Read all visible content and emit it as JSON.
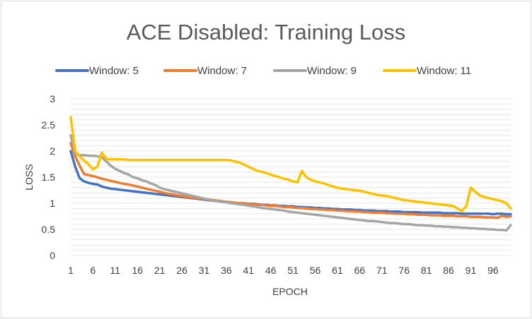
{
  "chart_data": {
    "type": "line",
    "title": "ACE Disabled: Training Loss",
    "xlabel": "EPOCH",
    "ylabel": "LOSS",
    "ylim": [
      0,
      3
    ],
    "yticks": [
      "0",
      "0.5",
      "1",
      "1.5",
      "2",
      "2.5",
      "3"
    ],
    "xticks": [
      "1",
      "6",
      "11",
      "16",
      "21",
      "26",
      "31",
      "36",
      "41",
      "46",
      "51",
      "56",
      "61",
      "66",
      "71",
      "76",
      "81",
      "86",
      "91",
      "96"
    ],
    "x_range": [
      1,
      100
    ],
    "grid": "horizontal",
    "legend_position": "top",
    "series": [
      {
        "name": "Window: 5",
        "color": "#4472C4",
        "values": [
          2.0,
          1.7,
          1.48,
          1.42,
          1.39,
          1.37,
          1.36,
          1.32,
          1.3,
          1.28,
          1.27,
          1.26,
          1.25,
          1.24,
          1.23,
          1.22,
          1.21,
          1.2,
          1.19,
          1.18,
          1.17,
          1.16,
          1.15,
          1.14,
          1.13,
          1.12,
          1.11,
          1.1,
          1.09,
          1.08,
          1.07,
          1.06,
          1.05,
          1.04,
          1.03,
          1.02,
          1.02,
          1.01,
          1.0,
          1.0,
          0.99,
          0.99,
          0.98,
          0.97,
          0.97,
          0.96,
          0.96,
          0.95,
          0.95,
          0.94,
          0.94,
          0.93,
          0.93,
          0.92,
          0.92,
          0.91,
          0.91,
          0.9,
          0.9,
          0.89,
          0.89,
          0.88,
          0.88,
          0.88,
          0.87,
          0.87,
          0.86,
          0.86,
          0.86,
          0.85,
          0.85,
          0.85,
          0.84,
          0.84,
          0.84,
          0.83,
          0.83,
          0.83,
          0.83,
          0.82,
          0.82,
          0.82,
          0.82,
          0.82,
          0.81,
          0.81,
          0.81,
          0.81,
          0.8,
          0.8,
          0.8,
          0.8,
          0.8,
          0.8,
          0.8,
          0.79,
          0.8,
          0.8,
          0.79,
          0.79
        ]
      },
      {
        "name": "Window: 7",
        "color": "#ED7D31",
        "values": [
          2.15,
          1.9,
          1.72,
          1.56,
          1.54,
          1.52,
          1.5,
          1.47,
          1.45,
          1.43,
          1.41,
          1.39,
          1.37,
          1.36,
          1.34,
          1.32,
          1.3,
          1.28,
          1.26,
          1.24,
          1.22,
          1.2,
          1.18,
          1.17,
          1.15,
          1.14,
          1.12,
          1.11,
          1.1,
          1.09,
          1.08,
          1.07,
          1.06,
          1.05,
          1.04,
          1.03,
          1.02,
          1.01,
          1.0,
          1.0,
          0.99,
          0.98,
          0.97,
          0.97,
          0.96,
          0.95,
          0.95,
          0.94,
          0.93,
          0.93,
          0.92,
          0.91,
          0.91,
          0.9,
          0.89,
          0.89,
          0.88,
          0.88,
          0.87,
          0.87,
          0.86,
          0.86,
          0.85,
          0.85,
          0.84,
          0.84,
          0.83,
          0.83,
          0.82,
          0.82,
          0.82,
          0.81,
          0.81,
          0.8,
          0.8,
          0.8,
          0.79,
          0.79,
          0.78,
          0.78,
          0.78,
          0.77,
          0.77,
          0.77,
          0.76,
          0.76,
          0.76,
          0.75,
          0.75,
          0.75,
          0.74,
          0.74,
          0.74,
          0.73,
          0.73,
          0.73,
          0.72,
          0.76,
          0.74,
          0.75
        ]
      },
      {
        "name": "Window: 9",
        "color": "#A5A5A5",
        "values": [
          2.3,
          1.95,
          1.92,
          1.92,
          1.91,
          1.91,
          1.9,
          1.88,
          1.8,
          1.72,
          1.66,
          1.62,
          1.58,
          1.55,
          1.5,
          1.48,
          1.44,
          1.42,
          1.38,
          1.35,
          1.3,
          1.27,
          1.25,
          1.23,
          1.21,
          1.19,
          1.17,
          1.15,
          1.13,
          1.11,
          1.09,
          1.07,
          1.05,
          1.04,
          1.03,
          1.02,
          1.0,
          0.99,
          0.98,
          0.97,
          0.95,
          0.94,
          0.93,
          0.91,
          0.9,
          0.89,
          0.88,
          0.87,
          0.86,
          0.84,
          0.83,
          0.82,
          0.81,
          0.8,
          0.79,
          0.78,
          0.77,
          0.76,
          0.75,
          0.74,
          0.73,
          0.72,
          0.71,
          0.7,
          0.69,
          0.68,
          0.67,
          0.66,
          0.66,
          0.65,
          0.64,
          0.63,
          0.62,
          0.62,
          0.61,
          0.6,
          0.6,
          0.59,
          0.58,
          0.58,
          0.57,
          0.57,
          0.56,
          0.56,
          0.55,
          0.55,
          0.54,
          0.54,
          0.53,
          0.53,
          0.52,
          0.52,
          0.51,
          0.51,
          0.5,
          0.5,
          0.49,
          0.49,
          0.48,
          0.58
        ]
      },
      {
        "name": "Window: 11",
        "color": "#FFC000",
        "values": [
          2.65,
          2.0,
          1.9,
          1.82,
          1.75,
          1.65,
          1.7,
          1.97,
          1.85,
          1.84,
          1.84,
          1.84,
          1.84,
          1.83,
          1.83,
          1.83,
          1.83,
          1.83,
          1.83,
          1.83,
          1.83,
          1.83,
          1.83,
          1.83,
          1.83,
          1.83,
          1.83,
          1.83,
          1.83,
          1.83,
          1.83,
          1.83,
          1.83,
          1.83,
          1.83,
          1.83,
          1.82,
          1.8,
          1.78,
          1.74,
          1.7,
          1.66,
          1.62,
          1.6,
          1.58,
          1.55,
          1.52,
          1.5,
          1.47,
          1.45,
          1.42,
          1.4,
          1.62,
          1.5,
          1.45,
          1.42,
          1.4,
          1.38,
          1.35,
          1.32,
          1.3,
          1.28,
          1.27,
          1.26,
          1.25,
          1.24,
          1.22,
          1.2,
          1.18,
          1.16,
          1.15,
          1.14,
          1.12,
          1.1,
          1.08,
          1.06,
          1.05,
          1.04,
          1.03,
          1.02,
          1.01,
          1.0,
          0.99,
          0.98,
          0.97,
          0.96,
          0.95,
          0.9,
          0.85,
          0.95,
          1.3,
          1.22,
          1.15,
          1.12,
          1.1,
          1.08,
          1.06,
          1.04,
          1.0,
          0.9
        ]
      }
    ]
  }
}
